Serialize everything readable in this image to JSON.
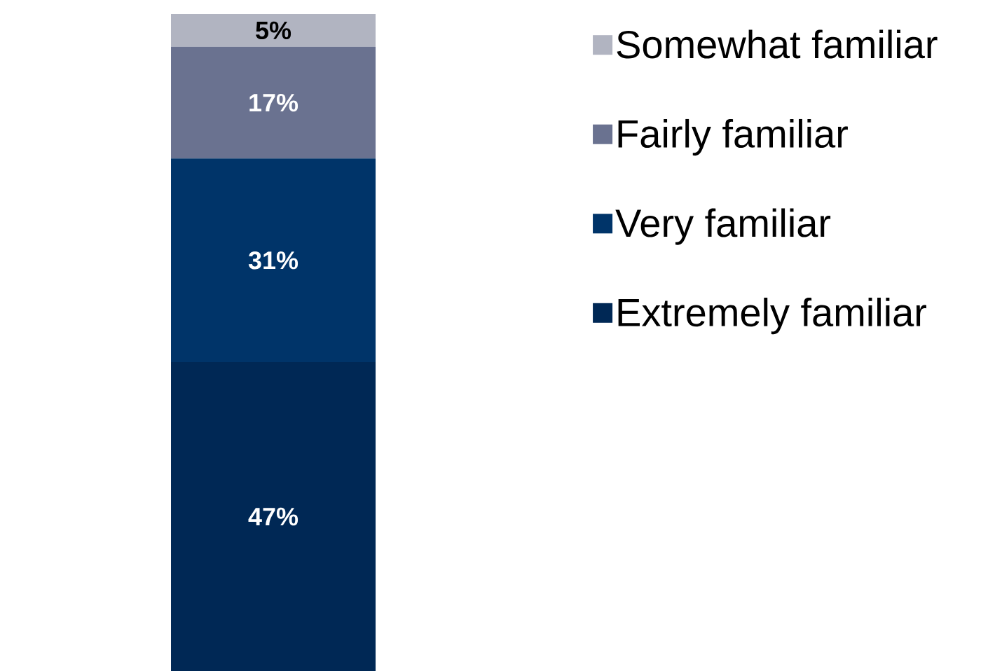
{
  "chart_data": {
    "type": "bar",
    "stacked": true,
    "categories": [
      null
    ],
    "legend": "right",
    "series": [
      {
        "name": "Extremely familiar",
        "color": "#002855",
        "values": [
          47
        ],
        "value_labels": [
          "47%"
        ]
      },
      {
        "name": "Very familiar",
        "color": "#003469",
        "values": [
          31
        ],
        "value_labels": [
          "31%"
        ]
      },
      {
        "name": "Fairly familiar",
        "color": "#6a7290",
        "values": [
          17
        ],
        "value_labels": [
          "17%"
        ]
      },
      {
        "name": "Somewhat familiar",
        "color": "#b1b4c1",
        "values": [
          5
        ],
        "value_labels": [
          "5%"
        ]
      }
    ]
  }
}
